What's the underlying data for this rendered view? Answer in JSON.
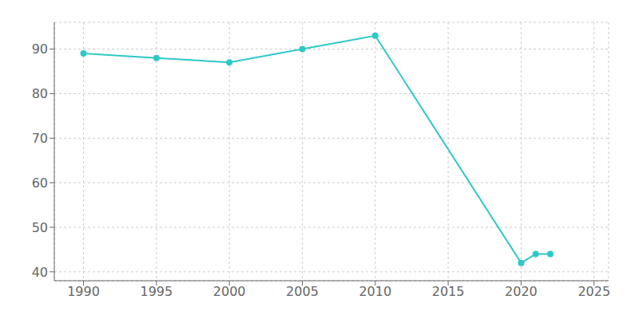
{
  "chart_data": {
    "type": "line",
    "x": [
      1990,
      1995,
      2000,
      2005,
      2010,
      2020,
      2021,
      2022
    ],
    "values": [
      89,
      88,
      87,
      90,
      93,
      42,
      44,
      44
    ],
    "color": "#2ec8c8",
    "marker": "circle",
    "xlim": [
      1988,
      2026
    ],
    "ylim": [
      38,
      96
    ],
    "xticks": [
      1990,
      1995,
      2000,
      2005,
      2010,
      2015,
      2020,
      2025
    ],
    "yticks": [
      40,
      50,
      60,
      70,
      80,
      90
    ],
    "grid": true
  }
}
